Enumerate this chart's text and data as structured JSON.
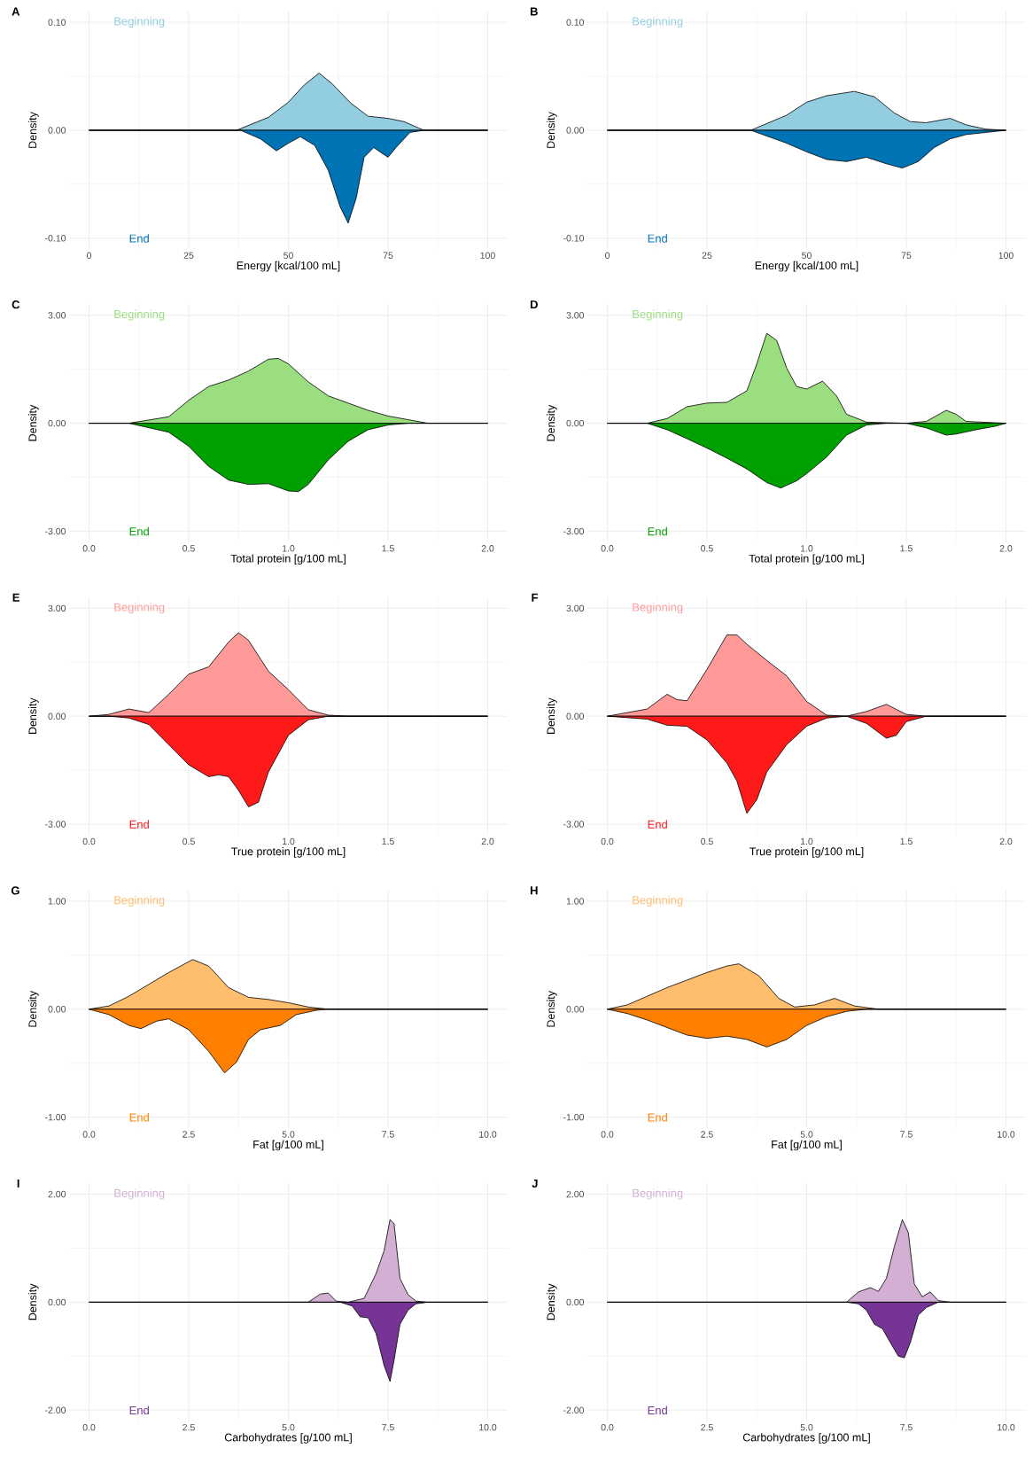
{
  "chart_data": [
    {
      "type": "area",
      "title": "A",
      "xlabel": "Energy [kcal/100 mL]",
      "ylabel": "Density",
      "xlim": [
        -5,
        105
      ],
      "ylim": [
        -0.11,
        0.11
      ],
      "xticks": [
        0,
        25,
        50,
        75,
        100
      ],
      "yticks": [
        {
          "value": -0.1,
          "label": "-0.10"
        },
        {
          "value": 0,
          "label": "0.00"
        },
        {
          "value": 0.1,
          "label": "0.10"
        }
      ],
      "grid": true,
      "series": [
        {
          "name": "Beginning",
          "color": "#93cde0",
          "x": [
            0,
            37,
            45,
            50,
            54,
            57.7,
            61,
            65.7,
            70,
            75,
            79,
            84,
            100
          ],
          "values": [
            0,
            0,
            0.012,
            0.026,
            0.042,
            0.053,
            0.043,
            0.025,
            0.013,
            0.011,
            0.008,
            0,
            0
          ]
        },
        {
          "name": "End",
          "color": "#0073b5",
          "x": [
            0,
            38,
            43,
            47,
            50,
            53,
            56.6,
            60,
            63,
            65,
            67,
            69,
            71.4,
            75,
            77,
            80.5,
            84,
            100
          ],
          "values": [
            0,
            0,
            -0.008,
            -0.019,
            -0.012,
            -0.006,
            -0.014,
            -0.037,
            -0.071,
            -0.086,
            -0.063,
            -0.025,
            -0.016,
            -0.025,
            -0.016,
            -0.002,
            0,
            0
          ]
        }
      ]
    },
    {
      "type": "area",
      "title": "B",
      "xlabel": "Energy [kcal/100 mL]",
      "ylabel": "Density",
      "xlim": [
        -5,
        105
      ],
      "ylim": [
        -0.11,
        0.11
      ],
      "xticks": [
        0,
        25,
        50,
        75,
        100
      ],
      "yticks": [
        {
          "value": -0.1,
          "label": "-0.10"
        },
        {
          "value": 0,
          "label": "0.00"
        },
        {
          "value": 0.1,
          "label": "0.10"
        }
      ],
      "grid": true,
      "series": [
        {
          "name": "Beginning",
          "color": "#93cde0",
          "x": [
            0,
            36,
            45,
            50,
            55,
            62,
            67,
            72,
            76,
            80,
            86,
            90,
            95,
            100
          ],
          "values": [
            0,
            0,
            0.014,
            0.026,
            0.032,
            0.036,
            0.031,
            0.016,
            0.008,
            0.007,
            0.011,
            0.005,
            0.001,
            0
          ]
        },
        {
          "name": "End",
          "color": "#0073b5",
          "x": [
            0,
            36,
            45,
            50,
            55,
            60,
            65,
            70,
            74,
            78,
            82,
            86,
            90,
            95,
            100
          ],
          "values": [
            0,
            0,
            -0.012,
            -0.02,
            -0.027,
            -0.029,
            -0.025,
            -0.031,
            -0.035,
            -0.029,
            -0.016,
            -0.008,
            -0.004,
            -0.002,
            0
          ]
        }
      ]
    },
    {
      "type": "area",
      "title": "C",
      "xlabel": "Total protein [g/100 mL]",
      "ylabel": "Density",
      "xlim": [
        -0.1,
        2.1
      ],
      "ylim": [
        -3.3,
        3.3
      ],
      "xticks": [
        {
          "value": 0,
          "label": "0.0"
        },
        {
          "value": 0.5,
          "label": "0.5"
        },
        {
          "value": 1,
          "label": "1.0"
        },
        {
          "value": 1.5,
          "label": "1.5"
        },
        {
          "value": 2,
          "label": "2.0"
        }
      ],
      "yticks": [
        {
          "value": -3,
          "label": "-3.00"
        },
        {
          "value": 0,
          "label": "0.00"
        },
        {
          "value": 3,
          "label": "3.00"
        }
      ],
      "grid": true,
      "series": [
        {
          "name": "Beginning",
          "color": "#9ade80",
          "x": [
            0,
            0.2,
            0.4,
            0.5,
            0.6,
            0.7,
            0.8,
            0.9,
            0.95,
            1.0,
            1.1,
            1.2,
            1.3,
            1.4,
            1.5,
            1.6,
            1.7,
            2.0
          ],
          "values": [
            0,
            0,
            0.18,
            0.64,
            1.02,
            1.2,
            1.45,
            1.78,
            1.8,
            1.65,
            1.15,
            0.76,
            0.56,
            0.36,
            0.2,
            0.1,
            0,
            0
          ]
        },
        {
          "name": "End",
          "color": "#00a000",
          "x": [
            0,
            0.2,
            0.4,
            0.5,
            0.6,
            0.7,
            0.8,
            0.9,
            1.0,
            1.05,
            1.1,
            1.2,
            1.3,
            1.4,
            1.5,
            1.6,
            2.0
          ],
          "values": [
            0,
            0,
            -0.25,
            -0.64,
            -1.2,
            -1.58,
            -1.7,
            -1.68,
            -1.88,
            -1.9,
            -1.7,
            -1.02,
            -0.5,
            -0.18,
            -0.05,
            0,
            0
          ]
        }
      ]
    },
    {
      "type": "area",
      "title": "D",
      "xlabel": "Total protein [g/100 mL]",
      "ylabel": "Density",
      "xlim": [
        -0.1,
        2.1
      ],
      "ylim": [
        -3.3,
        3.3
      ],
      "xticks": [
        {
          "value": 0,
          "label": "0.0"
        },
        {
          "value": 0.5,
          "label": "0.5"
        },
        {
          "value": 1,
          "label": "1.0"
        },
        {
          "value": 1.5,
          "label": "1.5"
        },
        {
          "value": 2,
          "label": "2.0"
        }
      ],
      "yticks": [
        {
          "value": -3,
          "label": "-3.00"
        },
        {
          "value": 0,
          "label": "0.00"
        },
        {
          "value": 3,
          "label": "3.00"
        }
      ],
      "grid": true,
      "series": [
        {
          "name": "Beginning",
          "color": "#9ade80",
          "x": [
            0,
            0.2,
            0.3,
            0.4,
            0.5,
            0.6,
            0.7,
            0.75,
            0.8,
            0.85,
            0.9,
            0.95,
            1.0,
            1.08,
            1.15,
            1.2,
            1.3,
            1.5,
            1.6,
            1.7,
            1.75,
            1.8,
            2.0
          ],
          "values": [
            0,
            0,
            0.13,
            0.46,
            0.56,
            0.58,
            0.9,
            1.65,
            2.5,
            2.3,
            1.53,
            1.02,
            0.95,
            1.17,
            0.76,
            0.25,
            0.03,
            0,
            0.05,
            0.36,
            0.25,
            0.05,
            0
          ]
        },
        {
          "name": "End",
          "color": "#00a000",
          "x": [
            0,
            0.2,
            0.3,
            0.4,
            0.5,
            0.6,
            0.7,
            0.8,
            0.87,
            0.95,
            1.0,
            1.1,
            1.2,
            1.3,
            1.4,
            1.5,
            1.6,
            1.7,
            1.75,
            1.85,
            1.95,
            2.0
          ],
          "values": [
            0,
            0,
            -0.18,
            -0.43,
            -0.69,
            -0.97,
            -1.27,
            -1.65,
            -1.8,
            -1.6,
            -1.4,
            -0.94,
            -0.33,
            -0.05,
            0,
            0,
            -0.13,
            -0.33,
            -0.3,
            -0.18,
            -0.08,
            0
          ]
        }
      ]
    },
    {
      "type": "area",
      "title": "E",
      "xlabel": "True protein [g/100 mL]",
      "ylabel": "Density",
      "xlim": [
        -0.1,
        2.1
      ],
      "ylim": [
        -3.3,
        3.3
      ],
      "xticks": [
        {
          "value": 0,
          "label": "0.0"
        },
        {
          "value": 0.5,
          "label": "0.5"
        },
        {
          "value": 1,
          "label": "1.0"
        },
        {
          "value": 1.5,
          "label": "1.5"
        },
        {
          "value": 2,
          "label": "2.0"
        }
      ],
      "yticks": [
        {
          "value": -3,
          "label": "-3.00"
        },
        {
          "value": 0,
          "label": "0.00"
        },
        {
          "value": 3,
          "label": "3.00"
        }
      ],
      "grid": true,
      "series": [
        {
          "name": "Beginning",
          "color": "#ff9a99",
          "x": [
            0,
            0.1,
            0.2,
            0.3,
            0.4,
            0.5,
            0.6,
            0.7,
            0.75,
            0.8,
            0.9,
            1.0,
            1.1,
            1.2,
            1.3,
            2.0
          ],
          "values": [
            0,
            0.05,
            0.2,
            0.1,
            0.61,
            1.17,
            1.37,
            2.06,
            2.32,
            2.11,
            1.25,
            0.74,
            0.18,
            0.03,
            0,
            0
          ]
        },
        {
          "name": "End",
          "color": "#ff1a1a",
          "x": [
            0,
            0.1,
            0.2,
            0.3,
            0.4,
            0.5,
            0.6,
            0.65,
            0.7,
            0.75,
            0.8,
            0.85,
            0.9,
            1.0,
            1.1,
            1.2,
            2.0
          ],
          "values": [
            0,
            0,
            -0.05,
            -0.23,
            -0.79,
            -1.35,
            -1.68,
            -1.63,
            -1.68,
            -2.06,
            -2.52,
            -2.39,
            -1.55,
            -0.53,
            -0.1,
            0,
            0
          ]
        }
      ]
    },
    {
      "type": "area",
      "title": "F",
      "xlabel": "True protein [g/100 mL]",
      "ylabel": "Density",
      "xlim": [
        -0.1,
        2.1
      ],
      "ylim": [
        -3.3,
        3.3
      ],
      "xticks": [
        {
          "value": 0,
          "label": "0.0"
        },
        {
          "value": 0.5,
          "label": "0.5"
        },
        {
          "value": 1,
          "label": "1.0"
        },
        {
          "value": 1.5,
          "label": "1.5"
        },
        {
          "value": 2,
          "label": "2.0"
        }
      ],
      "yticks": [
        {
          "value": -3,
          "label": "-3.00"
        },
        {
          "value": 0,
          "label": "0.00"
        },
        {
          "value": 3,
          "label": "3.00"
        }
      ],
      "grid": true,
      "series": [
        {
          "name": "Beginning",
          "color": "#ff9a99",
          "x": [
            0,
            0.2,
            0.3,
            0.35,
            0.4,
            0.5,
            0.6,
            0.65,
            0.7,
            0.8,
            0.9,
            1.0,
            1.1,
            1.2,
            1.3,
            1.4,
            1.5,
            1.6,
            2.0
          ],
          "values": [
            0,
            0.2,
            0.61,
            0.46,
            0.43,
            1.3,
            2.26,
            2.26,
            2.0,
            1.55,
            1.12,
            0.41,
            0.03,
            0,
            0.13,
            0.33,
            0.05,
            0,
            0
          ]
        },
        {
          "name": "End",
          "color": "#ff1a1a",
          "x": [
            0,
            0.2,
            0.3,
            0.4,
            0.5,
            0.6,
            0.65,
            0.7,
            0.75,
            0.8,
            0.9,
            1.0,
            1.1,
            1.2,
            1.3,
            1.4,
            1.45,
            1.5,
            1.6,
            2.0
          ],
          "values": [
            0,
            -0.08,
            -0.25,
            -0.28,
            -0.66,
            -1.3,
            -1.8,
            -2.7,
            -2.32,
            -1.55,
            -0.79,
            -0.28,
            -0.05,
            0,
            -0.2,
            -0.61,
            -0.53,
            -0.15,
            0,
            0
          ]
        }
      ]
    },
    {
      "type": "area",
      "title": "G",
      "xlabel": "Fat [g/100 mL]",
      "ylabel": "Density",
      "xlim": [
        -0.5,
        10.5
      ],
      "ylim": [
        -1.1,
        1.1
      ],
      "xticks": [
        {
          "value": 0,
          "label": "0.0"
        },
        {
          "value": 2.5,
          "label": "2.5"
        },
        {
          "value": 5,
          "label": "5.0"
        },
        {
          "value": 7.5,
          "label": "7.5"
        },
        {
          "value": 10,
          "label": "10.0"
        }
      ],
      "yticks": [
        {
          "value": -1,
          "label": "-1.00"
        },
        {
          "value": 0,
          "label": "0.00"
        },
        {
          "value": 1,
          "label": "1.00"
        }
      ],
      "grid": true,
      "series": [
        {
          "name": "Beginning",
          "color": "#ffbe6e",
          "x": [
            0,
            0.5,
            1.0,
            1.5,
            2.0,
            2.6,
            3.0,
            3.5,
            4.0,
            4.5,
            5.0,
            5.5,
            6.0,
            10
          ],
          "values": [
            0,
            0.03,
            0.12,
            0.23,
            0.34,
            0.46,
            0.4,
            0.2,
            0.11,
            0.09,
            0.06,
            0.02,
            0,
            0
          ]
        },
        {
          "name": "End",
          "color": "#ff7f00",
          "x": [
            0,
            0.5,
            1.0,
            1.3,
            1.7,
            2.0,
            2.5,
            3.0,
            3.4,
            3.7,
            4.0,
            4.3,
            4.8,
            5.2,
            5.7,
            6.0,
            10
          ],
          "values": [
            0,
            -0.05,
            -0.15,
            -0.18,
            -0.11,
            -0.09,
            -0.19,
            -0.39,
            -0.59,
            -0.49,
            -0.28,
            -0.19,
            -0.15,
            -0.05,
            -0.01,
            0,
            0
          ]
        }
      ]
    },
    {
      "type": "area",
      "title": "H",
      "xlabel": "Fat [g/100 mL]",
      "ylabel": "Density",
      "xlim": [
        -0.5,
        10.5
      ],
      "ylim": [
        -1.1,
        1.1
      ],
      "xticks": [
        {
          "value": 0,
          "label": "0.0"
        },
        {
          "value": 2.5,
          "label": "2.5"
        },
        {
          "value": 5,
          "label": "5.0"
        },
        {
          "value": 7.5,
          "label": "7.5"
        },
        {
          "value": 10,
          "label": "10.0"
        }
      ],
      "yticks": [
        {
          "value": -1,
          "label": "-1.00"
        },
        {
          "value": 0,
          "label": "0.00"
        },
        {
          "value": 1,
          "label": "1.00"
        }
      ],
      "grid": true,
      "series": [
        {
          "name": "Beginning",
          "color": "#ffbe6e",
          "x": [
            0,
            0.5,
            1.0,
            1.5,
            2.0,
            2.5,
            3.0,
            3.3,
            3.8,
            4.3,
            4.7,
            5.2,
            5.7,
            6.2,
            6.8,
            10
          ],
          "values": [
            0,
            0.04,
            0.12,
            0.2,
            0.27,
            0.34,
            0.4,
            0.42,
            0.31,
            0.1,
            0.02,
            0.04,
            0.1,
            0.03,
            0,
            0
          ]
        },
        {
          "name": "End",
          "color": "#ff7f00",
          "x": [
            0,
            0.5,
            1.0,
            1.5,
            2.0,
            2.5,
            3.0,
            3.5,
            4.0,
            4.5,
            5.0,
            5.5,
            6.0,
            6.5,
            10
          ],
          "values": [
            0,
            -0.04,
            -0.1,
            -0.17,
            -0.24,
            -0.27,
            -0.25,
            -0.28,
            -0.35,
            -0.28,
            -0.15,
            -0.07,
            -0.02,
            0,
            0
          ]
        }
      ]
    },
    {
      "type": "area",
      "title": "I",
      "xlabel": "Carbohydrates [g/100 mL]",
      "ylabel": "Density",
      "xlim": [
        -0.5,
        10.5
      ],
      "ylim": [
        -2.2,
        2.2
      ],
      "xticks": [
        {
          "value": 0,
          "label": "0.0"
        },
        {
          "value": 2.5,
          "label": "2.5"
        },
        {
          "value": 5,
          "label": "5.0"
        },
        {
          "value": 7.5,
          "label": "7.5"
        },
        {
          "value": 10,
          "label": "10.0"
        }
      ],
      "yticks": [
        {
          "value": -2,
          "label": "-2.00"
        },
        {
          "value": 0,
          "label": "0.00"
        },
        {
          "value": 2,
          "label": "2.00"
        }
      ],
      "grid": true,
      "series": [
        {
          "name": "Beginning",
          "color": "#d2afd3",
          "x": [
            0,
            5.5,
            5.8,
            6.0,
            6.2,
            6.5,
            6.9,
            7.2,
            7.4,
            7.55,
            7.65,
            7.8,
            8.0,
            8.2,
            8.5,
            10
          ],
          "values": [
            0,
            0,
            0.15,
            0.17,
            0.02,
            0,
            0.07,
            0.53,
            0.95,
            1.53,
            1.46,
            0.44,
            0.14,
            0.02,
            0,
            0
          ]
        },
        {
          "name": "End",
          "color": "#763596",
          "x": [
            0,
            6.3,
            6.6,
            6.8,
            7.0,
            7.2,
            7.4,
            7.55,
            7.65,
            7.8,
            8.0,
            8.2,
            8.5,
            10
          ],
          "values": [
            0,
            0,
            -0.07,
            -0.27,
            -0.29,
            -0.58,
            -1.17,
            -1.47,
            -1.08,
            -0.41,
            -0.15,
            -0.03,
            0,
            0
          ]
        }
      ]
    },
    {
      "type": "area",
      "title": "J",
      "xlabel": "Carbohydrates [g/100 mL]",
      "ylabel": "Density",
      "xlim": [
        -0.5,
        10.5
      ],
      "ylim": [
        -2.2,
        2.2
      ],
      "xticks": [
        {
          "value": 0,
          "label": "0.0"
        },
        {
          "value": 2.5,
          "label": "2.5"
        },
        {
          "value": 5,
          "label": "5.0"
        },
        {
          "value": 7.5,
          "label": "7.5"
        },
        {
          "value": 10,
          "label": "10.0"
        }
      ],
      "yticks": [
        {
          "value": -2,
          "label": "-2.00"
        },
        {
          "value": 0,
          "label": "0.00"
        },
        {
          "value": 2,
          "label": "2.00"
        }
      ],
      "grid": true,
      "series": [
        {
          "name": "Beginning",
          "color": "#d2afd3",
          "x": [
            0,
            6.0,
            6.3,
            6.6,
            6.8,
            7.0,
            7.2,
            7.4,
            7.55,
            7.7,
            7.9,
            8.1,
            8.3,
            8.6,
            10
          ],
          "values": [
            0,
            0,
            0.19,
            0.27,
            0.2,
            0.44,
            1.03,
            1.53,
            1.29,
            0.34,
            0.1,
            0.19,
            0.03,
            0,
            0
          ]
        },
        {
          "name": "End",
          "color": "#763596",
          "x": [
            0,
            6.0,
            6.3,
            6.5,
            6.7,
            6.9,
            7.1,
            7.3,
            7.45,
            7.6,
            7.8,
            8.0,
            8.3,
            10
          ],
          "values": [
            0,
            0,
            -0.03,
            -0.15,
            -0.41,
            -0.49,
            -0.75,
            -1.0,
            -1.03,
            -0.75,
            -0.24,
            -0.1,
            0,
            0
          ]
        }
      ]
    }
  ]
}
